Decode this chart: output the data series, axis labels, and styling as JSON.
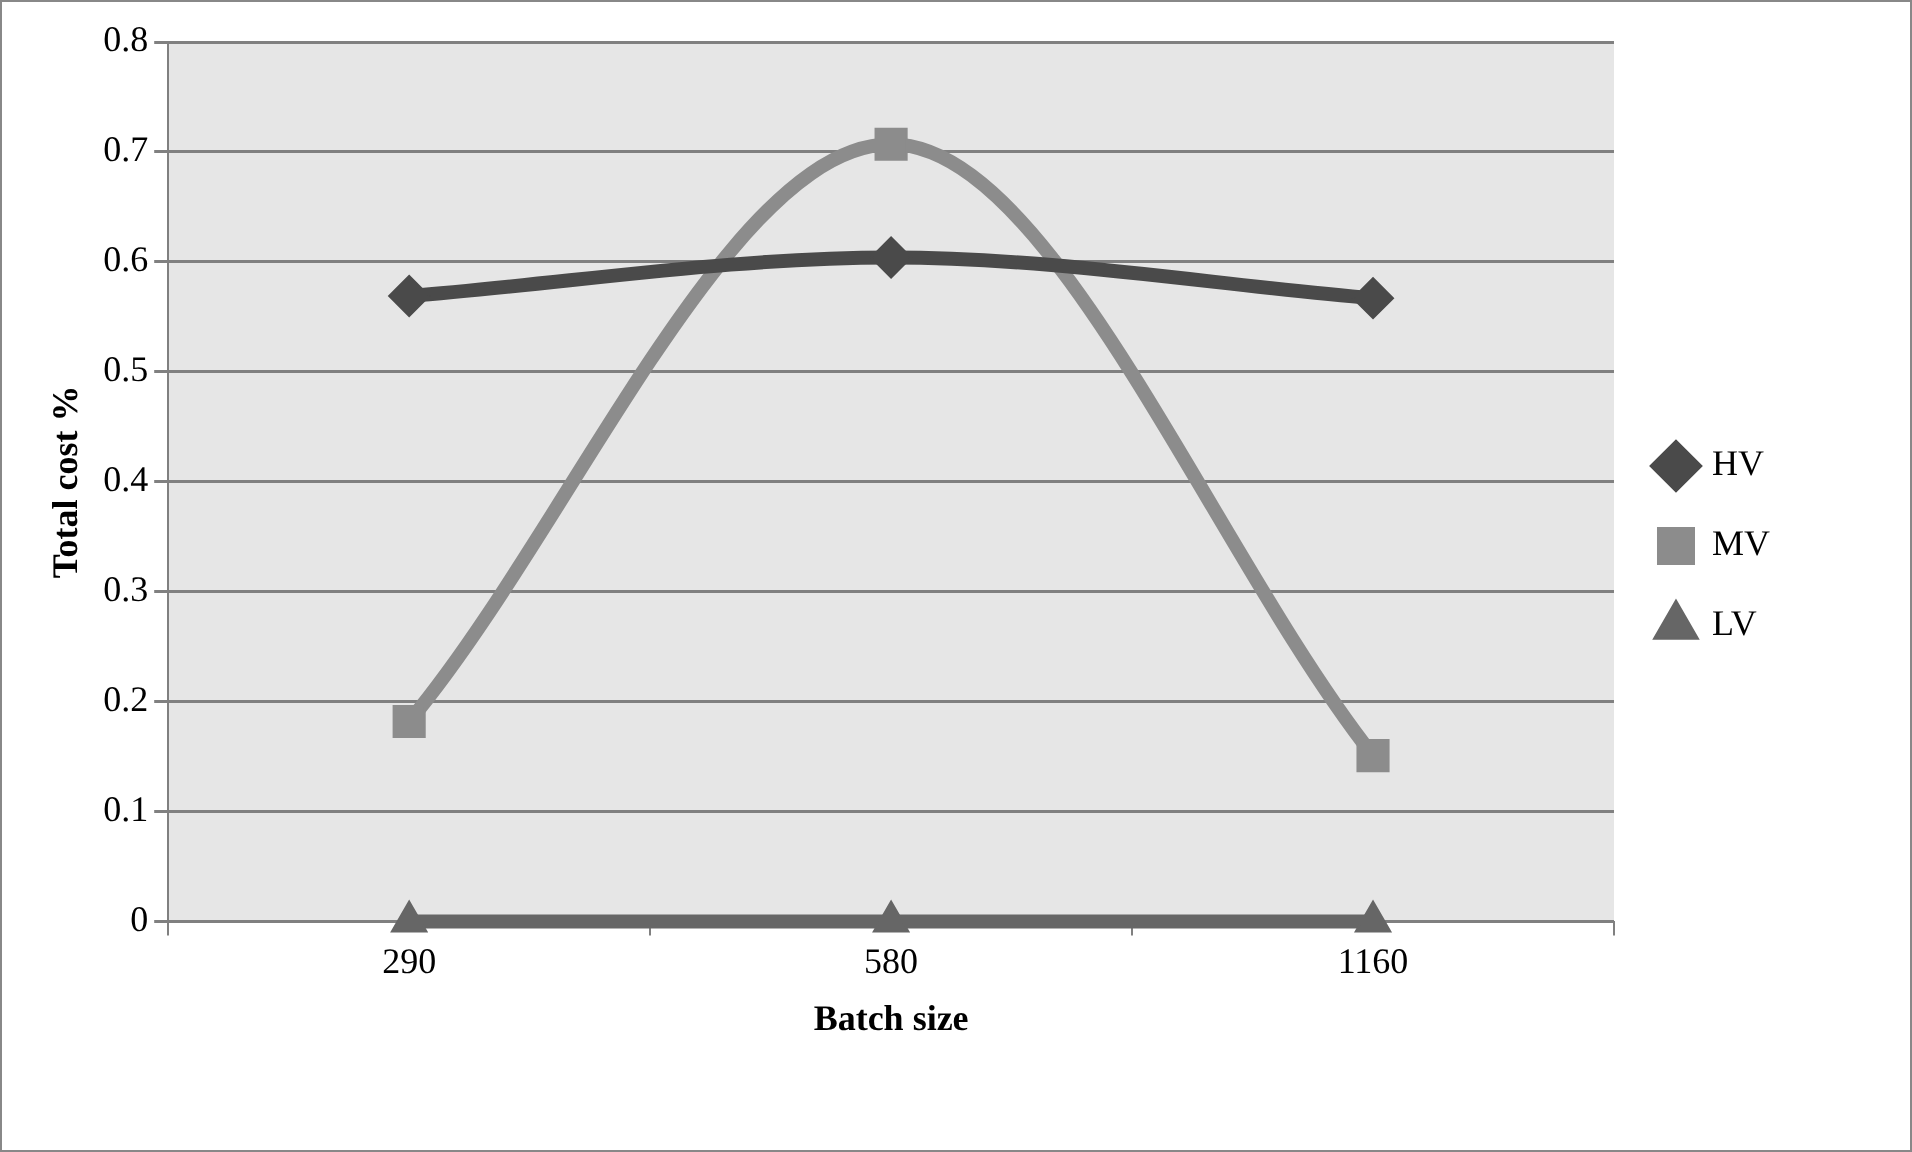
{
  "chart_data": {
    "type": "line",
    "xlabel": "Batch size",
    "ylabel": "Total cost %",
    "categories": [
      "290",
      "580",
      "1160"
    ],
    "series": [
      {
        "name": "HV",
        "color": "#4a4a4a",
        "marker": "diamond",
        "values": [
          0.569,
          0.604,
          0.567
        ]
      },
      {
        "name": "MV",
        "color": "#8c8c8c",
        "marker": "square",
        "values": [
          0.182,
          0.707,
          0.151
        ]
      },
      {
        "name": "LV",
        "color": "#666666",
        "marker": "triangle",
        "values": [
          0,
          0,
          0
        ]
      }
    ],
    "ylim": [
      0,
      0.8
    ],
    "yticks": [
      0,
      0.1,
      0.2,
      0.3,
      0.4,
      0.5,
      0.6,
      0.7,
      0.8
    ],
    "grid": "y",
    "legend": "right"
  }
}
